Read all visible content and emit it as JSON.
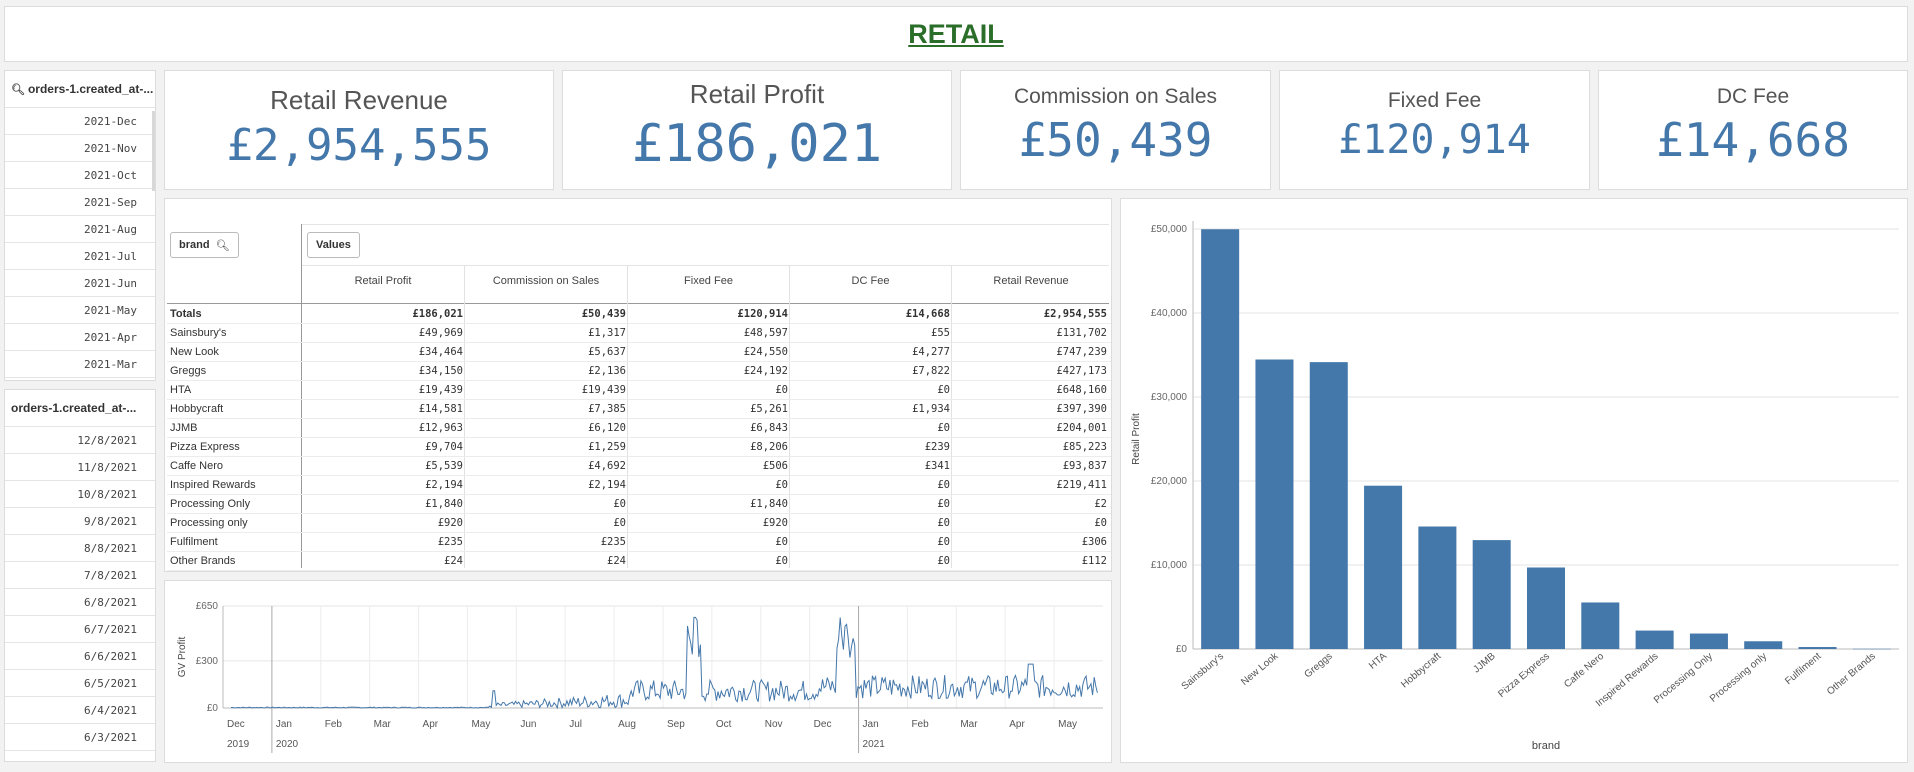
{
  "page": {
    "title": "RETAIL"
  },
  "filters": {
    "month": {
      "title": "orders-1.created_at-...",
      "items": [
        "2021-Dec",
        "2021-Nov",
        "2021-Oct",
        "2021-Sep",
        "2021-Aug",
        "2021-Jul",
        "2021-Jun",
        "2021-May",
        "2021-Apr",
        "2021-Mar"
      ]
    },
    "date": {
      "title": "orders-1.created_at-...",
      "items": [
        "12/8/2021",
        "11/8/2021",
        "10/8/2021",
        "9/8/2021",
        "8/8/2021",
        "7/8/2021",
        "6/8/2021",
        "6/7/2021",
        "6/6/2021",
        "6/5/2021",
        "6/4/2021",
        "6/3/2021"
      ]
    }
  },
  "kpis": [
    {
      "label": "Retail Revenue",
      "value": "£2,954,555"
    },
    {
      "label": "Retail Profit",
      "value": "£186,021"
    },
    {
      "label": "Commission on Sales",
      "value": "£50,439"
    },
    {
      "label": "Fixed Fee",
      "value": "£120,914"
    },
    {
      "label": "DC Fee",
      "value": "£14,668"
    }
  ],
  "pivot": {
    "dim_button": "brand",
    "values_button": "Values",
    "columns": [
      "Retail Profit",
      "Commission on Sales",
      "Fixed Fee",
      "DC Fee",
      "Retail Revenue"
    ],
    "rows": [
      {
        "name": "Totals",
        "cells": [
          "£186,021",
          "£50,439",
          "£120,914",
          "£14,668",
          "£2,954,555"
        ]
      },
      {
        "name": "Sainsbury's",
        "cells": [
          "£49,969",
          "£1,317",
          "£48,597",
          "£55",
          "£131,702"
        ]
      },
      {
        "name": "New Look",
        "cells": [
          "£34,464",
          "£5,637",
          "£24,550",
          "£4,277",
          "£747,239"
        ]
      },
      {
        "name": "Greggs",
        "cells": [
          "£34,150",
          "£2,136",
          "£24,192",
          "£7,822",
          "£427,173"
        ]
      },
      {
        "name": "HTA",
        "cells": [
          "£19,439",
          "£19,439",
          "£0",
          "£0",
          "£648,160"
        ]
      },
      {
        "name": "Hobbycraft",
        "cells": [
          "£14,581",
          "£7,385",
          "£5,261",
          "£1,934",
          "£397,390"
        ]
      },
      {
        "name": "JJMB",
        "cells": [
          "£12,963",
          "£6,120",
          "£6,843",
          "£0",
          "£204,001"
        ]
      },
      {
        "name": "Pizza Express",
        "cells": [
          "£9,704",
          "£1,259",
          "£8,206",
          "£239",
          "£85,223"
        ]
      },
      {
        "name": "Caffe Nero",
        "cells": [
          "£5,539",
          "£4,692",
          "£506",
          "£341",
          "£93,837"
        ]
      },
      {
        "name": "Inspired Rewards",
        "cells": [
          "£2,194",
          "£2,194",
          "£0",
          "£0",
          "£219,411"
        ]
      },
      {
        "name": "Processing Only",
        "cells": [
          "£1,840",
          "£0",
          "£1,840",
          "£0",
          "£2"
        ]
      },
      {
        "name": "Processing only",
        "cells": [
          "£920",
          "£0",
          "£920",
          "£0",
          "£0"
        ]
      },
      {
        "name": "Fulfilment",
        "cells": [
          "£235",
          "£235",
          "£0",
          "£0",
          "£306"
        ]
      },
      {
        "name": "Other Brands",
        "cells": [
          "£24",
          "£24",
          "£0",
          "£0",
          "£112"
        ]
      }
    ]
  },
  "colors": {
    "accent": "#4477aa",
    "title": "#2a6e2a"
  },
  "chart_data": [
    {
      "type": "bar",
      "ylabel": "Retail Profit",
      "xlabel": "brand",
      "ylim": [
        0,
        50000
      ],
      "yticks": [
        "£0",
        "£10,000",
        "£20,000",
        "£30,000",
        "£40,000",
        "£50,000"
      ],
      "grid": true,
      "categories": [
        "Sainsbury's",
        "New Look",
        "Greggs",
        "HTA",
        "Hobbycraft",
        "JJMB",
        "Pizza Express",
        "Caffe Nero",
        "Inspired Rewards",
        "Processing Only",
        "Processing only",
        "Fulfilment",
        "Other Brands"
      ],
      "values": [
        49969,
        34464,
        34150,
        19439,
        14581,
        12963,
        9704,
        5539,
        2194,
        1840,
        920,
        235,
        24
      ]
    },
    {
      "type": "line",
      "ylabel": "GV Profit",
      "ylim": [
        0,
        650
      ],
      "yticks": [
        "£0",
        "£300",
        "£650"
      ],
      "month_ticks": [
        "Dec",
        "Jan",
        "Feb",
        "Mar",
        "Apr",
        "May",
        "Jun",
        "Jul",
        "Aug",
        "Sep",
        "Oct",
        "Nov",
        "Dec",
        "Jan",
        "Feb",
        "Mar",
        "Apr",
        "May"
      ],
      "year_ticks": [
        "2019",
        "2020",
        "2021"
      ],
      "grid": true,
      "peaks": [
        {
          "month": "Sep 2020",
          "value": 600
        },
        {
          "month": "Dec 2020",
          "value": 620
        }
      ]
    }
  ]
}
